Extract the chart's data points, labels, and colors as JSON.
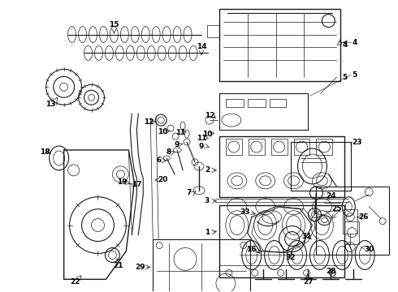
{
  "background_color": "#ffffff",
  "line_color": "#1a1a1a",
  "fig_width": 4.9,
  "fig_height": 3.6,
  "dpi": 100,
  "label_fontsize": 6.5
}
